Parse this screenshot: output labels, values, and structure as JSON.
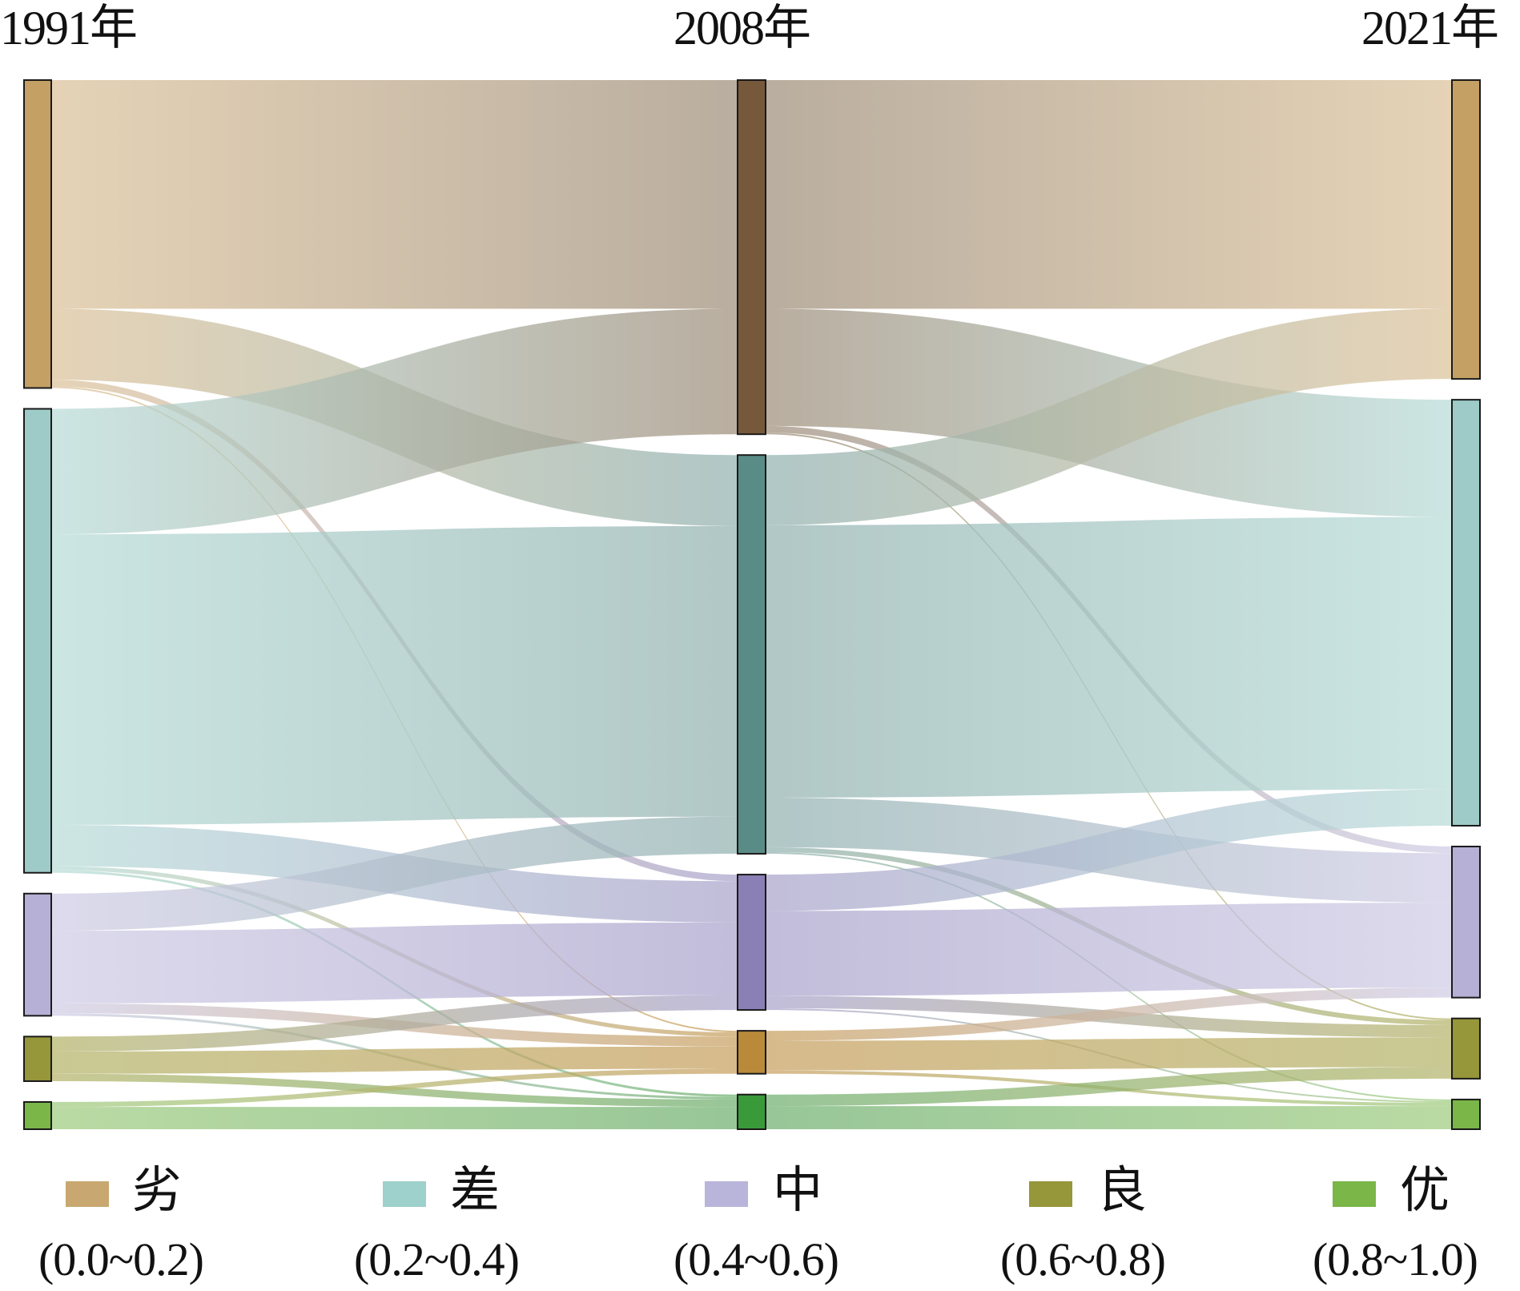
{
  "chart_data": {
    "type": "sankey",
    "title": "",
    "columns": [
      "1991年",
      "2008年",
      "2021年"
    ],
    "categories": [
      {
        "name": "劣",
        "range": "(0.0~0.2)",
        "color": "#c4a064"
      },
      {
        "name": "差",
        "range": "(0.2~0.4)",
        "color": "#9ecbc8"
      },
      {
        "name": "中",
        "range": "(0.4~0.6)",
        "color": "#b6b0d6"
      },
      {
        "name": "良",
        "range": "(0.6~0.8)",
        "color": "#96963a"
      },
      {
        "name": "优",
        "range": "(0.8~1.0)",
        "color": "#7ab648"
      }
    ],
    "mid_column_colors": [
      "#76593a",
      "#5a8c87",
      "#8a80b6",
      "#b88a3a",
      "#3a9a3a"
    ],
    "flow_light_colors": [
      "#dcc29a",
      "#b8dcd8",
      "#d0cce6",
      "#b4b46a",
      "#a0cc80"
    ],
    "flow_mid_colors": [
      "#9e8e7a",
      "#92b2b0",
      "#aaa4cc",
      "#c8a060",
      "#70b070"
    ],
    "links": [
      [
        [
          0,
          0,
          277
        ],
        [
          0,
          1,
          86
        ],
        [
          0,
          2,
          8
        ],
        [
          0,
          3,
          2
        ],
        [
          1,
          0,
          152
        ],
        [
          1,
          1,
          352
        ],
        [
          1,
          2,
          50
        ],
        [
          1,
          3,
          5
        ],
        [
          1,
          4,
          3
        ],
        [
          2,
          1,
          45
        ],
        [
          2,
          2,
          88
        ],
        [
          2,
          3,
          12
        ],
        [
          2,
          4,
          3
        ],
        [
          3,
          2,
          18
        ],
        [
          3,
          3,
          27
        ],
        [
          3,
          4,
          9
        ],
        [
          4,
          3,
          6
        ],
        [
          4,
          4,
          27
        ]
      ],
      [
        [
          0,
          0,
          277
        ],
        [
          0,
          1,
          142
        ],
        [
          0,
          2,
          8
        ],
        [
          0,
          3,
          2
        ],
        [
          1,
          0,
          85
        ],
        [
          1,
          1,
          330
        ],
        [
          1,
          2,
          60
        ],
        [
          1,
          3,
          6
        ],
        [
          1,
          4,
          2
        ],
        [
          2,
          1,
          44
        ],
        [
          2,
          2,
          103
        ],
        [
          2,
          3,
          15
        ],
        [
          2,
          4,
          2
        ],
        [
          3,
          2,
          12
        ],
        [
          3,
          3,
          36
        ],
        [
          3,
          4,
          4
        ],
        [
          4,
          3,
          14
        ],
        [
          4,
          4,
          28
        ]
      ]
    ],
    "legend": "bottom"
  }
}
